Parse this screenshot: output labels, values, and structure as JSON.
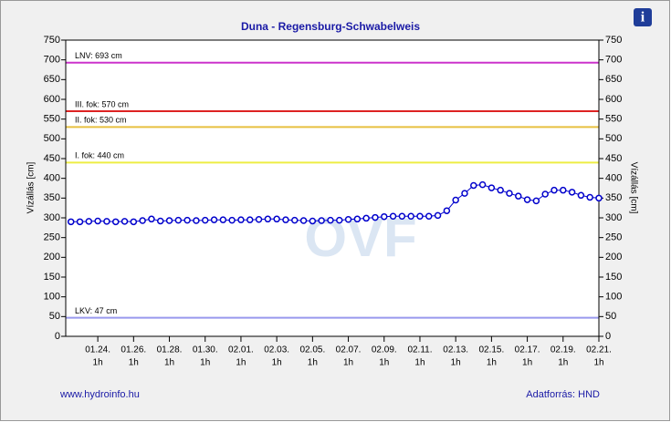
{
  "chart_data": {
    "type": "line",
    "title": "Duna - Regensburg-Schwabelweis",
    "y_label": "Vízállás [cm]",
    "y2_label": "Vízállás [cm]",
    "footer_left": "www.hydroinfo.hu",
    "footer_right": "Adatforrás: HND",
    "watermark": "OVF",
    "info_icon": "i",
    "color": "#0000cc",
    "x": [
      "01.22. 13h",
      "01.23. 1h",
      "01.23. 13h",
      "01.24. 1h",
      "01.24. 13h",
      "01.25. 1h",
      "01.25. 13h",
      "01.26. 1h",
      "01.26. 13h",
      "01.27. 1h",
      "01.27. 13h",
      "01.28. 1h",
      "01.28. 13h",
      "01.29. 1h",
      "01.29. 13h",
      "01.30. 1h",
      "01.30. 13h",
      "01.31. 1h",
      "01.31. 13h",
      "02.01. 1h",
      "02.01. 13h",
      "02.02. 1h",
      "02.02. 13h",
      "02.03. 1h",
      "02.03. 13h",
      "02.04. 1h",
      "02.04. 13h",
      "02.05. 1h",
      "02.05. 13h",
      "02.06. 1h",
      "02.06. 13h",
      "02.07. 1h",
      "02.07. 13h",
      "02.08. 1h",
      "02.08. 13h",
      "02.09. 1h",
      "02.09. 13h",
      "02.10. 1h",
      "02.10. 13h",
      "02.11. 1h",
      "02.11. 13h",
      "02.12. 1h",
      "02.12. 13h",
      "02.13. 1h",
      "02.13. 13h",
      "02.14. 1h",
      "02.14. 13h",
      "02.15. 1h",
      "02.15. 13h",
      "02.16. 1h",
      "02.16. 13h",
      "02.17. 1h",
      "02.17. 13h",
      "02.18. 1h",
      "02.18. 13h",
      "02.19. 1h",
      "02.19. 13h",
      "02.20. 1h",
      "02.20. 13h",
      "02.21. 1h"
    ],
    "values": [
      290,
      290,
      291,
      292,
      291,
      290,
      291,
      290,
      293,
      297,
      292,
      293,
      294,
      294,
      293,
      294,
      295,
      295,
      294,
      295,
      295,
      296,
      297,
      297,
      295,
      294,
      293,
      292,
      293,
      294,
      294,
      296,
      297,
      299,
      301,
      303,
      304,
      304,
      304,
      304,
      304,
      306,
      318,
      345,
      362,
      382,
      384,
      376,
      370,
      362,
      355,
      346,
      343,
      360,
      370,
      370,
      365,
      357,
      352,
      350
    ],
    "xlim": [
      "01.22. 6h",
      "02.21. 1h"
    ],
    "xticks": [
      {
        "value": "01.24. 1h",
        "label": "01.24."
      },
      {
        "value": "01.26. 1h",
        "label": "01.26."
      },
      {
        "value": "01.28. 1h",
        "label": "01.28."
      },
      {
        "value": "01.30. 1h",
        "label": "01.30."
      },
      {
        "value": "02.01. 1h",
        "label": "02.01."
      },
      {
        "value": "02.03. 1h",
        "label": "02.03."
      },
      {
        "value": "02.05. 1h",
        "label": "02.05."
      },
      {
        "value": "02.07. 1h",
        "label": "02.07."
      },
      {
        "value": "02.09. 1h",
        "label": "02.09."
      },
      {
        "value": "02.11. 1h",
        "label": "02.11."
      },
      {
        "value": "02.13. 1h",
        "label": "02.13."
      },
      {
        "value": "02.15. 1h",
        "label": "02.15."
      },
      {
        "value": "02.17. 1h",
        "label": "02.17."
      },
      {
        "value": "02.19. 1h",
        "label": "02.19."
      },
      {
        "value": "02.21. 1h",
        "label": "02.21."
      }
    ],
    "x_tick_hour": "1h",
    "ylim": [
      0,
      750
    ],
    "yticks": [
      0,
      50,
      100,
      150,
      200,
      250,
      300,
      350,
      400,
      450,
      500,
      550,
      600,
      650,
      700,
      750
    ],
    "y2lim": [
      0,
      750
    ],
    "y2ticks": [
      0,
      50,
      100,
      150,
      200,
      250,
      300,
      350,
      400,
      450,
      500,
      550,
      600,
      650,
      700,
      750
    ],
    "thresholds": [
      {
        "label": "LNV: 693 cm",
        "value": 693,
        "color": "#cc33cc"
      },
      {
        "label": "III. fok: 570 cm",
        "value": 570,
        "color": "#dd2222"
      },
      {
        "label": "II. fok: 530 cm",
        "value": 530,
        "color": "#e8c040"
      },
      {
        "label": "I. fok: 440 cm",
        "value": 440,
        "color": "#eeee44"
      },
      {
        "label": "LKV: 47 cm",
        "value": 47,
        "color": "#9999ee"
      }
    ]
  }
}
